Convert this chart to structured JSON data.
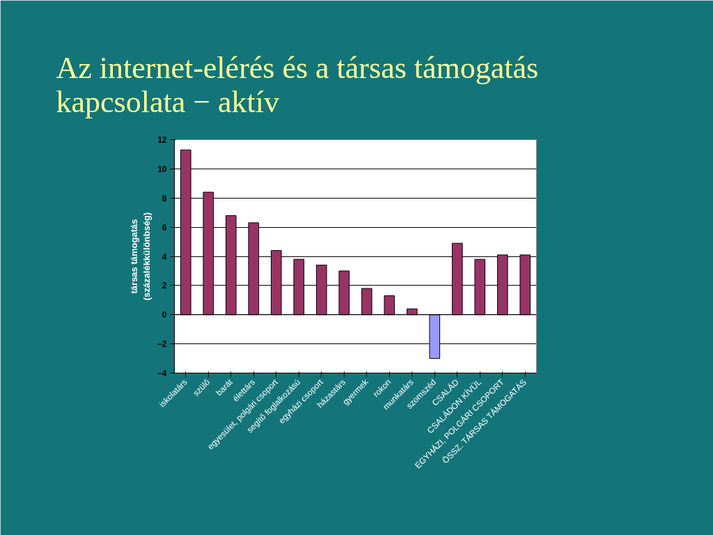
{
  "chart_data": {
    "type": "bar",
    "title": "Az internet-elérés és a társas támogatás kapcsolata − aktív",
    "ylabel": "társas támogatás\n(százalékkülönbség)",
    "categories": [
      "iskolatárs",
      "szülő",
      "barát",
      "élettárs",
      "egyesület, polgári csoport",
      "segítő foglalkozású",
      "egyházi csoport",
      "házastárs",
      "gyermek",
      "rokon",
      "munkatárs",
      "szomszéd",
      "CSALÁD",
      "CSALÁDON KÍVÜL",
      "EGYHÁZI, POLGÁRI CSOPORT",
      "ÖSSZ. TÁRSAS TÁMOGATÁS"
    ],
    "values": [
      11.3,
      8.4,
      6.8,
      6.3,
      4.4,
      3.8,
      3.4,
      3.0,
      1.8,
      1.3,
      0.4,
      -3.0,
      4.9,
      3.8,
      4.1,
      4.1
    ],
    "colors": [
      "#993366",
      "#993366",
      "#993366",
      "#993366",
      "#993366",
      "#993366",
      "#993366",
      "#993366",
      "#993366",
      "#993366",
      "#993366",
      "#9999ff",
      "#993366",
      "#993366",
      "#993366",
      "#993366"
    ],
    "ylim": [
      -4,
      12
    ],
    "yticks": [
      -4,
      -2,
      0,
      2,
      4,
      6,
      8,
      10,
      12
    ],
    "grid": "y"
  }
}
